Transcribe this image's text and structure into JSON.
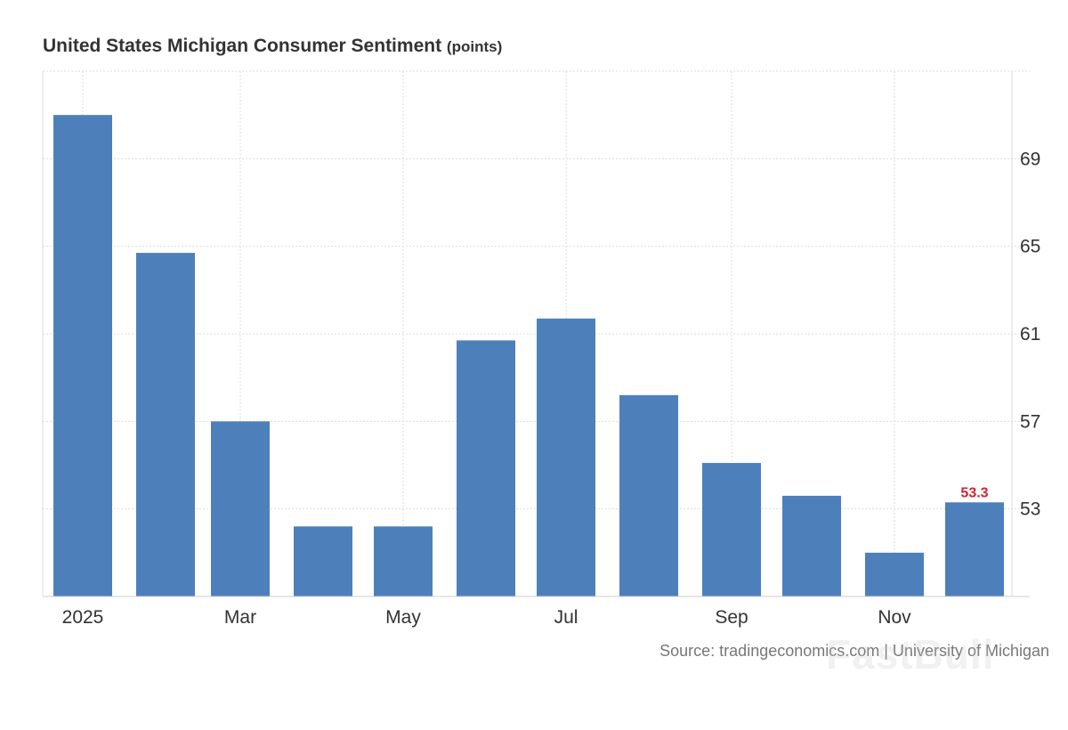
{
  "chart_data": {
    "type": "bar",
    "title": "United States Michigan Consumer Sentiment",
    "unit": "(points)",
    "categories": [
      "2025-01",
      "2025-02",
      "2025-03",
      "2025-04",
      "2025-05",
      "2025-06",
      "2025-07",
      "2025-08",
      "2025-09",
      "2025-10",
      "2025-11",
      "2025-12"
    ],
    "values": [
      71.0,
      64.7,
      57.0,
      52.2,
      52.2,
      60.7,
      61.7,
      58.2,
      55.1,
      53.6,
      51.0,
      53.3
    ],
    "x_tick_labels": [
      {
        "category": "2025-01",
        "label": "2025"
      },
      {
        "category": "2025-03",
        "label": "Mar"
      },
      {
        "category": "2025-05",
        "label": "May"
      },
      {
        "category": "2025-07",
        "label": "Jul"
      },
      {
        "category": "2025-09",
        "label": "Sep"
      },
      {
        "category": "2025-11",
        "label": "Nov"
      }
    ],
    "y_ticks": [
      53,
      57,
      61,
      65,
      69
    ],
    "ylim": [
      49,
      73
    ],
    "y_axis_side": "right",
    "grid": true,
    "last_value_label": "53.3",
    "bar_color": "#4d80bb",
    "label_color": "#d6202f",
    "source": "Source: tradingeconomics.com | University of Michigan",
    "watermark": "FastBull"
  }
}
